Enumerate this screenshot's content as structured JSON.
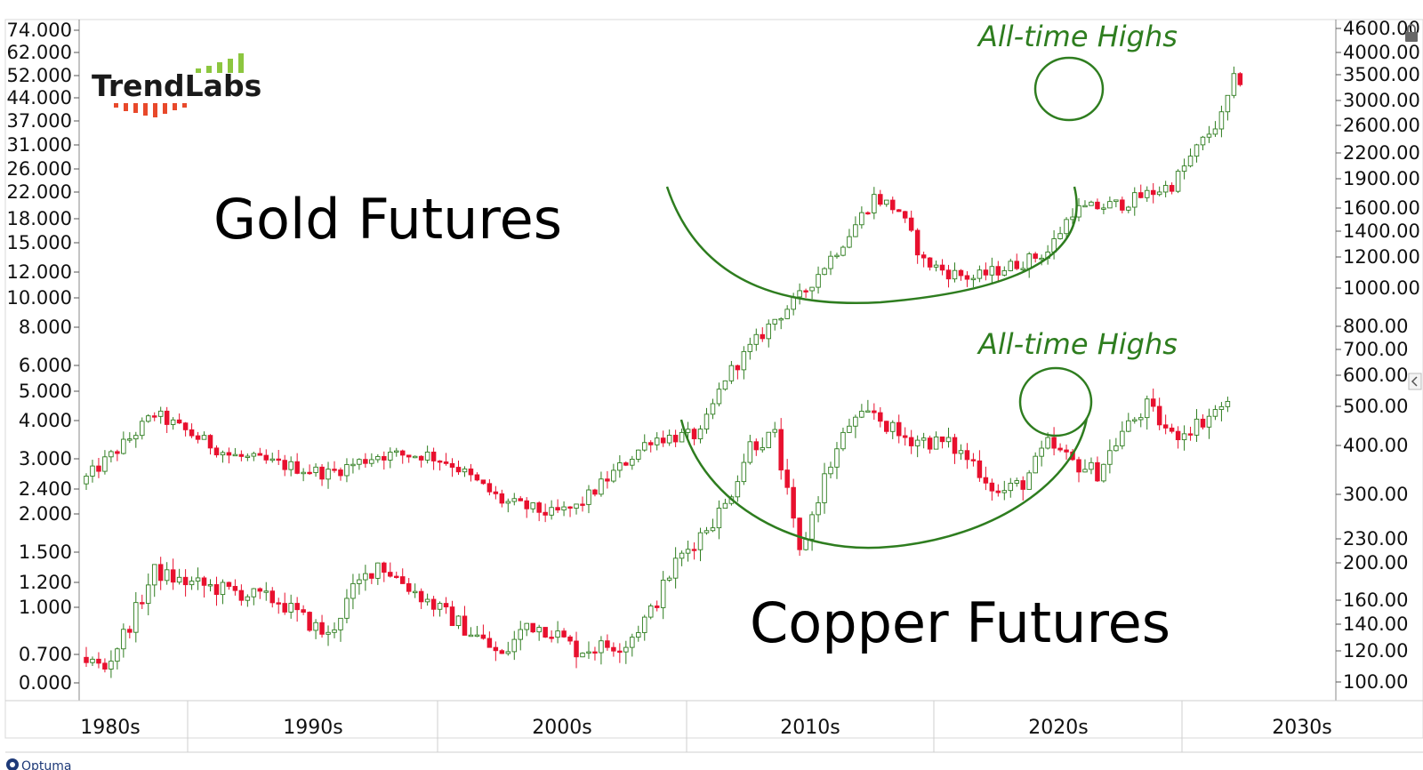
{
  "logo": {
    "text": "TrendLabs"
  },
  "credit": {
    "text": "Optuma"
  },
  "chart_data": {
    "type": "candlestick",
    "title": "",
    "xlabel": "",
    "ylabel": "",
    "x_axis": {
      "labels": [
        "1980s",
        "1990s",
        "2000s",
        "2010s",
        "2020s",
        "2030s"
      ],
      "range": [
        1980,
        2030
      ]
    },
    "left_axis": {
      "ticks": [
        "74.000",
        "62.000",
        "52.000",
        "44.000",
        "37.000",
        "31.000",
        "26.000",
        "22.000",
        "18.000",
        "15.000",
        "12.000",
        "10.000",
        "8.000",
        "6.000",
        "5.000",
        "4.000",
        "3.000",
        "2.400",
        "2.000",
        "1.500",
        "1.200",
        "1.000",
        "0.700",
        "0.000"
      ],
      "scale": "log"
    },
    "right_axis": {
      "ticks": [
        "4600.00",
        "4000.00",
        "3500.00",
        "3000.00",
        "2600.00",
        "2200.00",
        "1900.00",
        "1600.00",
        "1400.00",
        "1200.00",
        "1000.00",
        "800.00",
        "700.00",
        "600.00",
        "500.00",
        "400.00",
        "300.00",
        "230.00",
        "200.00",
        "160.00",
        "140.00",
        "120.00",
        "100.00"
      ],
      "scale": "log"
    },
    "series": [
      {
        "name": "Gold Futures",
        "axis": "left",
        "anchors": [
          [
            1980,
            2.5
          ],
          [
            1982,
            3.5
          ],
          [
            1983,
            4.2
          ],
          [
            1986,
            3.1
          ],
          [
            1990,
            2.7
          ],
          [
            1992,
            3.1
          ],
          [
            1994,
            3.1
          ],
          [
            1995,
            2.9
          ],
          [
            1997,
            2.2
          ],
          [
            1999,
            2.0
          ],
          [
            2000,
            2.1
          ],
          [
            2003,
            3.5
          ],
          [
            2005,
            3.6
          ],
          [
            2006,
            5.5
          ],
          [
            2008,
            8.5
          ],
          [
            2009,
            10.0
          ],
          [
            2011,
            16.0
          ],
          [
            2012,
            21.0
          ],
          [
            2013,
            19.0
          ],
          [
            2014,
            13.0
          ],
          [
            2015,
            12.0
          ],
          [
            2016,
            11.5
          ],
          [
            2018,
            13.0
          ],
          [
            2019,
            14.0
          ],
          [
            2020,
            19.0
          ],
          [
            2022,
            20.0
          ],
          [
            2024,
            23.0
          ],
          [
            2025,
            30.0
          ],
          [
            2026,
            38.0
          ],
          [
            2026.5,
            50.0
          ]
        ]
      },
      {
        "name": "Copper Futures",
        "axis": "right",
        "anchors": [
          [
            1980,
            115
          ],
          [
            1981,
            108
          ],
          [
            1982,
            140
          ],
          [
            1983,
            190
          ],
          [
            1984,
            180
          ],
          [
            1986,
            170
          ],
          [
            1988,
            160
          ],
          [
            1990,
            130
          ],
          [
            1991,
            170
          ],
          [
            1992,
            200
          ],
          [
            1994,
            160
          ],
          [
            1996,
            130
          ],
          [
            1997,
            115
          ],
          [
            1998,
            140
          ],
          [
            1999,
            135
          ],
          [
            2000,
            120
          ],
          [
            2002,
            125
          ],
          [
            2003,
            150
          ],
          [
            2004,
            200
          ],
          [
            2006,
            280
          ],
          [
            2007,
            400
          ],
          [
            2008,
            420
          ],
          [
            2009,
            210
          ],
          [
            2010,
            330
          ],
          [
            2011,
            450
          ],
          [
            2012,
            480
          ],
          [
            2013,
            420
          ],
          [
            2015,
            400
          ],
          [
            2016,
            360
          ],
          [
            2017,
            300
          ],
          [
            2018,
            320
          ],
          [
            2019,
            400
          ],
          [
            2020,
            360
          ],
          [
            2021,
            340
          ],
          [
            2022,
            430
          ],
          [
            2023,
            500
          ],
          [
            2024,
            420
          ],
          [
            2025,
            450
          ],
          [
            2026,
            500
          ]
        ]
      }
    ],
    "annotations": [
      {
        "text": "Gold Futures",
        "role": "series-label"
      },
      {
        "text": "Copper Futures",
        "role": "series-label"
      },
      {
        "text": "All-time Highs",
        "target": "Gold Futures"
      },
      {
        "text": "All-time Highs",
        "target": "Copper Futures"
      }
    ],
    "colors": {
      "up": "#ffffff",
      "up_border": "#2e7d1f",
      "down": "#e8102e",
      "wick": "#2e7d1f",
      "annotation": "#2e7d1f",
      "grid_line": "#cccccc"
    }
  }
}
